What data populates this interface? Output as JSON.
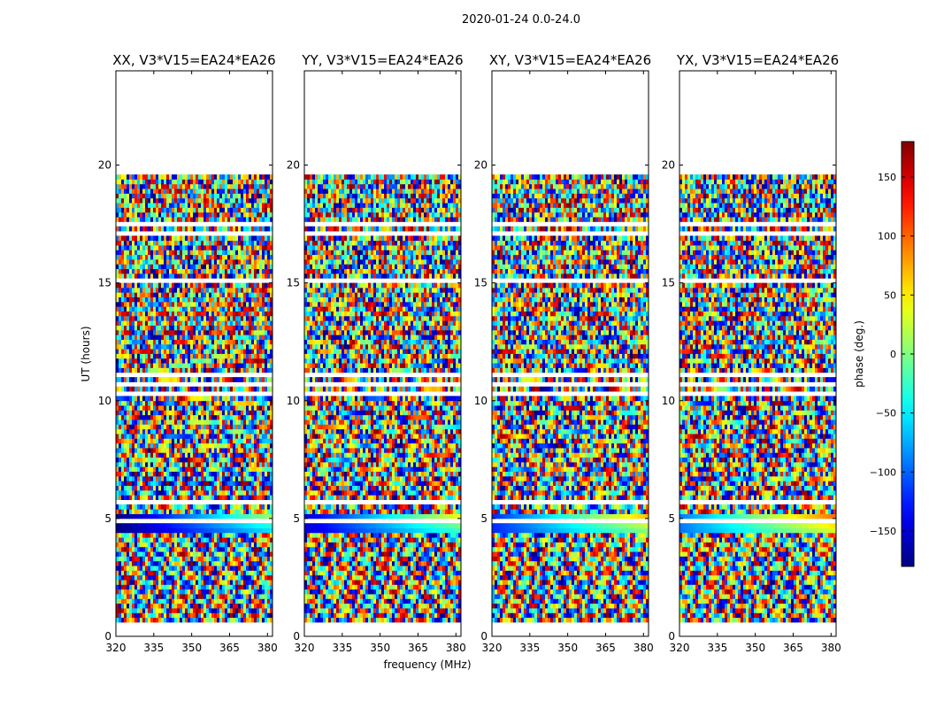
{
  "figure_title": "2020-01-24 0.0-24.0",
  "chart_data": {
    "type": "heatmap",
    "suptitle": "2020-01-24 0.0-24.0",
    "xlabel": "frequency (MHz)",
    "ylabel": "UT (hours)",
    "xlim": [
      320,
      382
    ],
    "ylim": [
      0,
      24
    ],
    "xticks": [
      320,
      335,
      350,
      365,
      380
    ],
    "yticks": [
      0,
      5,
      10,
      15,
      20
    ],
    "data_extent_hours": [
      0,
      19.6
    ],
    "colorbar": {
      "label": "phase (deg.)",
      "colormap": "jet",
      "range": [
        -180,
        180
      ],
      "ticks": [
        150,
        100,
        50,
        0,
        -50,
        -100,
        -150
      ],
      "tick_labels": [
        "150",
        "100",
        "50",
        "0",
        "−50",
        "−100",
        "−150"
      ]
    },
    "panels": [
      {
        "title": "XX, V3*V15=EA24*EA26",
        "pol": "XX"
      },
      {
        "title": "YY, V3*V15=EA24*EA26",
        "pol": "YY"
      },
      {
        "title": "XY, V3*V15=EA24*EA26",
        "pol": "XY"
      },
      {
        "title": "YX, V3*V15=EA24*EA26",
        "pol": "YX"
      }
    ],
    "flagged_ut_bands": [
      [
        0.1,
        0.2
      ],
      [
        0.3,
        0.55
      ],
      [
        2.0,
        2.05
      ],
      [
        3.0,
        3.08
      ],
      [
        4.2,
        4.25
      ],
      [
        4.9,
        4.95
      ],
      [
        5.15,
        5.25
      ],
      [
        5.55,
        5.75
      ],
      [
        9.95,
        10.05
      ],
      [
        10.3,
        10.4
      ],
      [
        10.6,
        10.75
      ],
      [
        11.1,
        11.15
      ],
      [
        15.1,
        15.15
      ],
      [
        17.0,
        17.1
      ],
      [
        17.5,
        17.55
      ],
      [
        18.0,
        18.05
      ],
      [
        19.2,
        19.25
      ]
    ]
  }
}
